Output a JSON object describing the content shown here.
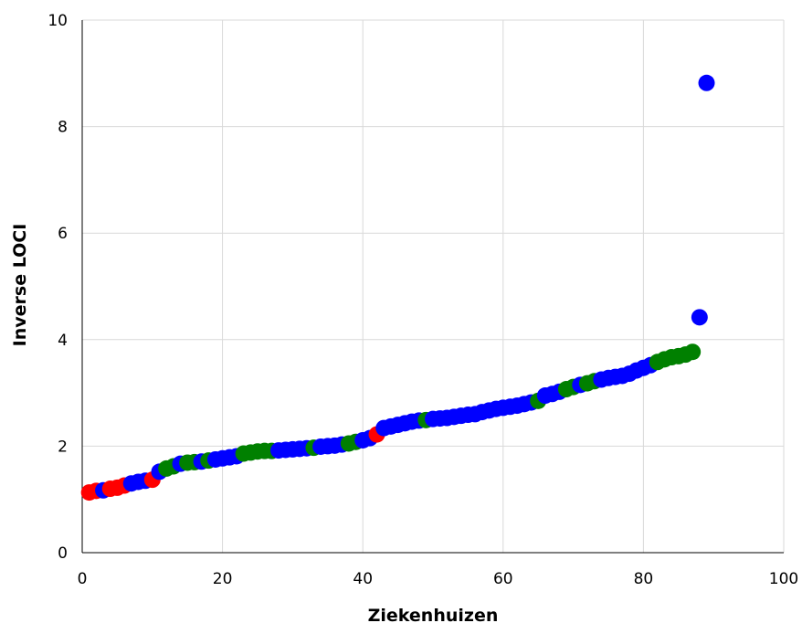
{
  "chart_data": {
    "type": "scatter",
    "title": "",
    "xlabel": "Ziekenhuizen",
    "ylabel": "Inverse LOCI",
    "xlim": [
      0,
      100
    ],
    "ylim": [
      0,
      10
    ],
    "xticks": [
      "0",
      "20",
      "40",
      "60",
      "80",
      "100"
    ],
    "yticks": [
      "0",
      "2",
      "4",
      "6",
      "8",
      "10"
    ],
    "grid": true,
    "legend": "none",
    "colors": {
      "red": "#ff0000",
      "blue": "#0000ff",
      "green": "#008000"
    },
    "points": [
      {
        "x": 1,
        "y": 1.13,
        "color": "red"
      },
      {
        "x": 2,
        "y": 1.16,
        "color": "red"
      },
      {
        "x": 3,
        "y": 1.17,
        "color": "blue"
      },
      {
        "x": 4,
        "y": 1.2,
        "color": "red"
      },
      {
        "x": 5,
        "y": 1.22,
        "color": "red"
      },
      {
        "x": 6,
        "y": 1.26,
        "color": "red"
      },
      {
        "x": 7,
        "y": 1.3,
        "color": "blue"
      },
      {
        "x": 8,
        "y": 1.33,
        "color": "blue"
      },
      {
        "x": 9,
        "y": 1.35,
        "color": "blue"
      },
      {
        "x": 10,
        "y": 1.37,
        "color": "red"
      },
      {
        "x": 11,
        "y": 1.52,
        "color": "blue"
      },
      {
        "x": 12,
        "y": 1.58,
        "color": "green"
      },
      {
        "x": 13,
        "y": 1.62,
        "color": "green"
      },
      {
        "x": 14,
        "y": 1.67,
        "color": "blue"
      },
      {
        "x": 15,
        "y": 1.69,
        "color": "green"
      },
      {
        "x": 16,
        "y": 1.7,
        "color": "green"
      },
      {
        "x": 17,
        "y": 1.71,
        "color": "blue"
      },
      {
        "x": 18,
        "y": 1.73,
        "color": "green"
      },
      {
        "x": 19,
        "y": 1.75,
        "color": "blue"
      },
      {
        "x": 20,
        "y": 1.77,
        "color": "blue"
      },
      {
        "x": 21,
        "y": 1.79,
        "color": "blue"
      },
      {
        "x": 22,
        "y": 1.81,
        "color": "blue"
      },
      {
        "x": 23,
        "y": 1.86,
        "color": "green"
      },
      {
        "x": 24,
        "y": 1.88,
        "color": "green"
      },
      {
        "x": 25,
        "y": 1.9,
        "color": "green"
      },
      {
        "x": 26,
        "y": 1.91,
        "color": "green"
      },
      {
        "x": 27,
        "y": 1.91,
        "color": "green"
      },
      {
        "x": 28,
        "y": 1.92,
        "color": "blue"
      },
      {
        "x": 29,
        "y": 1.93,
        "color": "blue"
      },
      {
        "x": 30,
        "y": 1.94,
        "color": "blue"
      },
      {
        "x": 31,
        "y": 1.95,
        "color": "blue"
      },
      {
        "x": 32,
        "y": 1.96,
        "color": "blue"
      },
      {
        "x": 33,
        "y": 1.97,
        "color": "green"
      },
      {
        "x": 34,
        "y": 1.99,
        "color": "blue"
      },
      {
        "x": 35,
        "y": 2.0,
        "color": "blue"
      },
      {
        "x": 36,
        "y": 2.01,
        "color": "blue"
      },
      {
        "x": 37,
        "y": 2.03,
        "color": "blue"
      },
      {
        "x": 38,
        "y": 2.05,
        "color": "green"
      },
      {
        "x": 39,
        "y": 2.08,
        "color": "green"
      },
      {
        "x": 40,
        "y": 2.11,
        "color": "blue"
      },
      {
        "x": 41,
        "y": 2.15,
        "color": "blue"
      },
      {
        "x": 42,
        "y": 2.22,
        "color": "red"
      },
      {
        "x": 43,
        "y": 2.34,
        "color": "blue"
      },
      {
        "x": 44,
        "y": 2.37,
        "color": "blue"
      },
      {
        "x": 45,
        "y": 2.4,
        "color": "blue"
      },
      {
        "x": 46,
        "y": 2.43,
        "color": "blue"
      },
      {
        "x": 47,
        "y": 2.46,
        "color": "blue"
      },
      {
        "x": 48,
        "y": 2.48,
        "color": "blue"
      },
      {
        "x": 49,
        "y": 2.49,
        "color": "green"
      },
      {
        "x": 50,
        "y": 2.51,
        "color": "blue"
      },
      {
        "x": 51,
        "y": 2.52,
        "color": "blue"
      },
      {
        "x": 52,
        "y": 2.53,
        "color": "blue"
      },
      {
        "x": 53,
        "y": 2.55,
        "color": "blue"
      },
      {
        "x": 54,
        "y": 2.57,
        "color": "blue"
      },
      {
        "x": 55,
        "y": 2.59,
        "color": "blue"
      },
      {
        "x": 56,
        "y": 2.6,
        "color": "blue"
      },
      {
        "x": 57,
        "y": 2.64,
        "color": "blue"
      },
      {
        "x": 58,
        "y": 2.67,
        "color": "blue"
      },
      {
        "x": 59,
        "y": 2.7,
        "color": "blue"
      },
      {
        "x": 60,
        "y": 2.72,
        "color": "blue"
      },
      {
        "x": 61,
        "y": 2.74,
        "color": "blue"
      },
      {
        "x": 62,
        "y": 2.76,
        "color": "blue"
      },
      {
        "x": 63,
        "y": 2.79,
        "color": "blue"
      },
      {
        "x": 64,
        "y": 2.82,
        "color": "blue"
      },
      {
        "x": 65,
        "y": 2.85,
        "color": "green"
      },
      {
        "x": 66,
        "y": 2.95,
        "color": "blue"
      },
      {
        "x": 67,
        "y": 2.98,
        "color": "blue"
      },
      {
        "x": 68,
        "y": 3.02,
        "color": "blue"
      },
      {
        "x": 69,
        "y": 3.07,
        "color": "green"
      },
      {
        "x": 70,
        "y": 3.11,
        "color": "green"
      },
      {
        "x": 71,
        "y": 3.15,
        "color": "blue"
      },
      {
        "x": 72,
        "y": 3.18,
        "color": "green"
      },
      {
        "x": 73,
        "y": 3.22,
        "color": "green"
      },
      {
        "x": 74,
        "y": 3.25,
        "color": "blue"
      },
      {
        "x": 75,
        "y": 3.28,
        "color": "blue"
      },
      {
        "x": 76,
        "y": 3.3,
        "color": "blue"
      },
      {
        "x": 77,
        "y": 3.32,
        "color": "blue"
      },
      {
        "x": 78,
        "y": 3.36,
        "color": "blue"
      },
      {
        "x": 79,
        "y": 3.42,
        "color": "blue"
      },
      {
        "x": 80,
        "y": 3.47,
        "color": "blue"
      },
      {
        "x": 81,
        "y": 3.52,
        "color": "blue"
      },
      {
        "x": 82,
        "y": 3.58,
        "color": "green"
      },
      {
        "x": 83,
        "y": 3.63,
        "color": "green"
      },
      {
        "x": 84,
        "y": 3.67,
        "color": "green"
      },
      {
        "x": 85,
        "y": 3.69,
        "color": "green"
      },
      {
        "x": 86,
        "y": 3.72,
        "color": "green"
      },
      {
        "x": 87,
        "y": 3.77,
        "color": "green"
      },
      {
        "x": 88,
        "y": 4.42,
        "color": "blue"
      },
      {
        "x": 89,
        "y": 8.82,
        "color": "blue"
      }
    ]
  }
}
